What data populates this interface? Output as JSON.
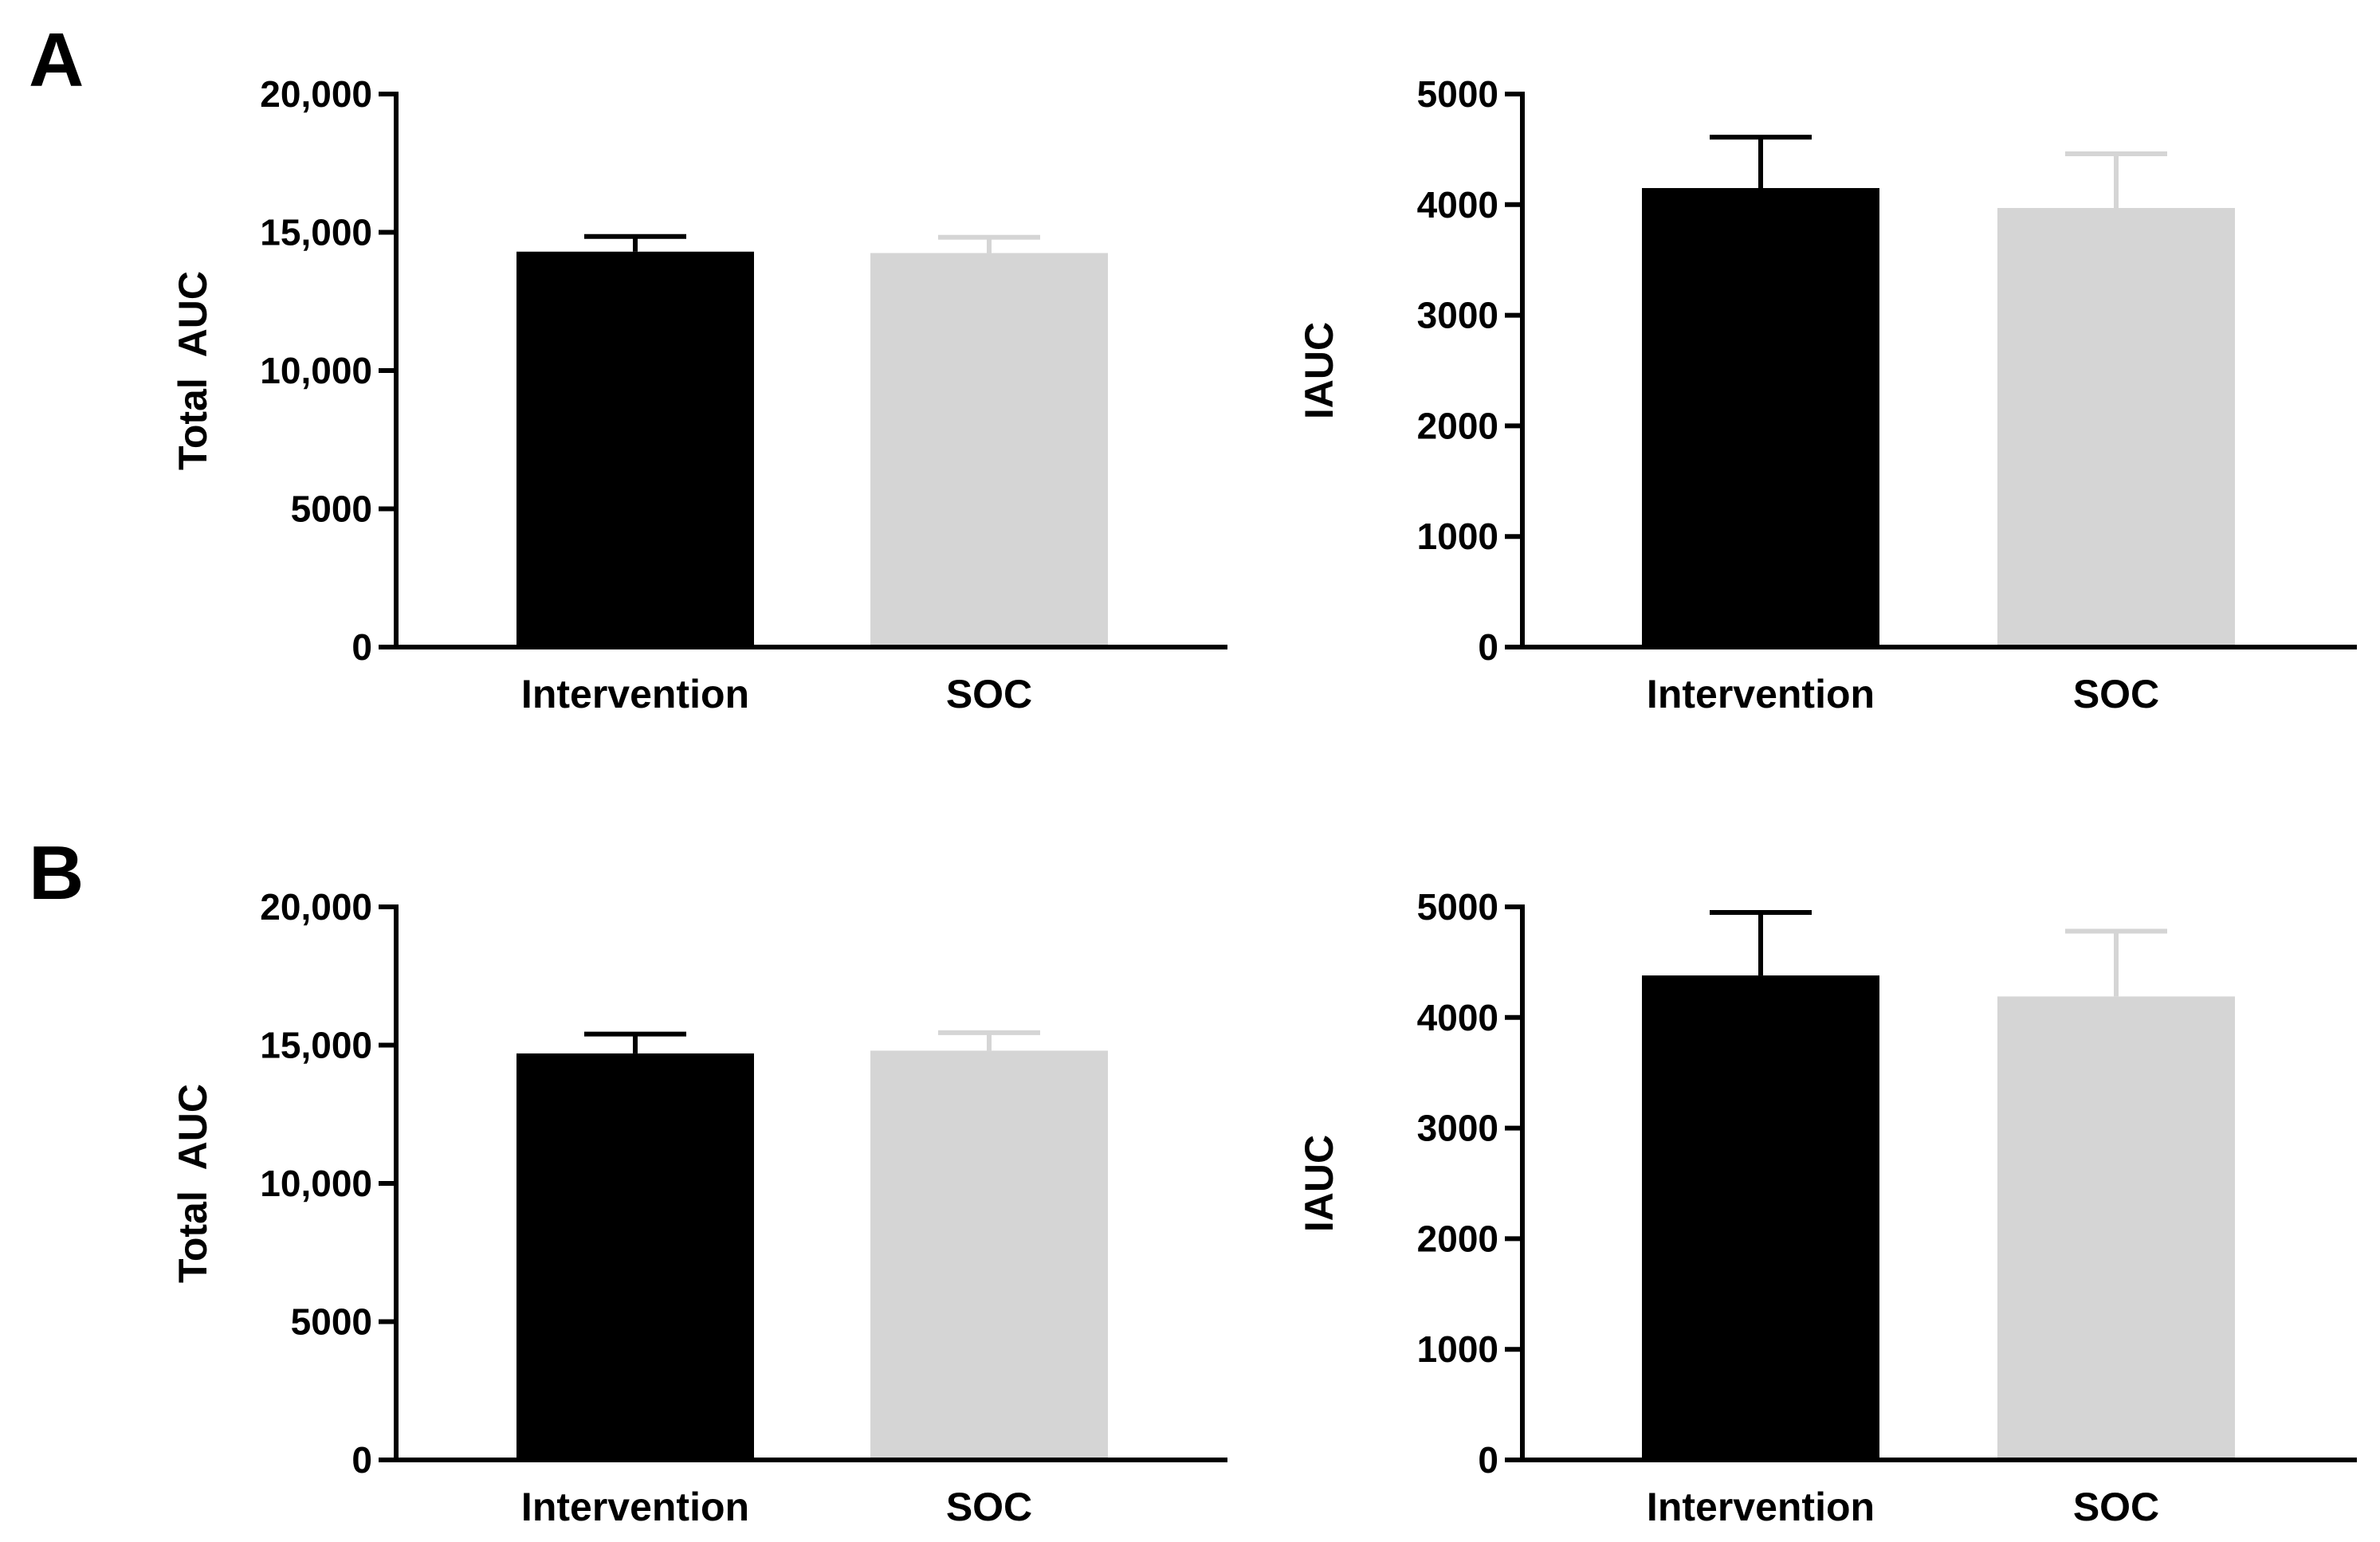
{
  "figure": {
    "panels": [
      {
        "label": "A"
      },
      {
        "label": "B"
      }
    ]
  },
  "chart_data": [
    {
      "panel": "A",
      "type": "bar",
      "title": "",
      "xlabel": "",
      "ylabel": "Total  AUC",
      "categories": [
        "Intervention",
        "SOC"
      ],
      "values": [
        14300,
        14250
      ],
      "errors": [
        550,
        570
      ],
      "colors": [
        "#000000",
        "#d5d5d5"
      ],
      "ylim": [
        0,
        20000
      ],
      "yticks": [
        0,
        5000,
        10000,
        15000,
        20000
      ],
      "ytick_labels": [
        "0",
        "5000",
        "10,000",
        "15,000",
        "20,000"
      ],
      "grid": false
    },
    {
      "panel": "A",
      "type": "bar",
      "title": "",
      "xlabel": "",
      "ylabel": "IAUC",
      "categories": [
        "Intervention",
        "SOC"
      ],
      "values": [
        4150,
        3970
      ],
      "errors": [
        460,
        490
      ],
      "colors": [
        "#000000",
        "#d5d5d5"
      ],
      "ylim": [
        0,
        5000
      ],
      "yticks": [
        0,
        1000,
        2000,
        3000,
        4000,
        5000
      ],
      "ytick_labels": [
        "0",
        "1000",
        "2000",
        "3000",
        "4000",
        "5000"
      ],
      "grid": false
    },
    {
      "panel": "B",
      "type": "bar",
      "title": "",
      "xlabel": "",
      "ylabel": "Total  AUC",
      "categories": [
        "Intervention",
        "SOC"
      ],
      "values": [
        14700,
        14800
      ],
      "errors": [
        700,
        650
      ],
      "colors": [
        "#000000",
        "#d5d5d5"
      ],
      "ylim": [
        0,
        20000
      ],
      "yticks": [
        0,
        5000,
        10000,
        15000,
        20000
      ],
      "ytick_labels": [
        "0",
        "5000",
        "10,000",
        "15,000",
        "20,000"
      ],
      "grid": false
    },
    {
      "panel": "B",
      "type": "bar",
      "title": "",
      "xlabel": "",
      "ylabel": "IAUC",
      "categories": [
        "Intervention",
        "SOC"
      ],
      "values": [
        4380,
        4190
      ],
      "errors": [
        570,
        590
      ],
      "colors": [
        "#000000",
        "#d5d5d5"
      ],
      "ylim": [
        0,
        5000
      ],
      "yticks": [
        0,
        1000,
        2000,
        3000,
        4000,
        5000
      ],
      "ytick_labels": [
        "0",
        "1000",
        "2000",
        "3000",
        "4000",
        "5000"
      ],
      "grid": false
    }
  ]
}
